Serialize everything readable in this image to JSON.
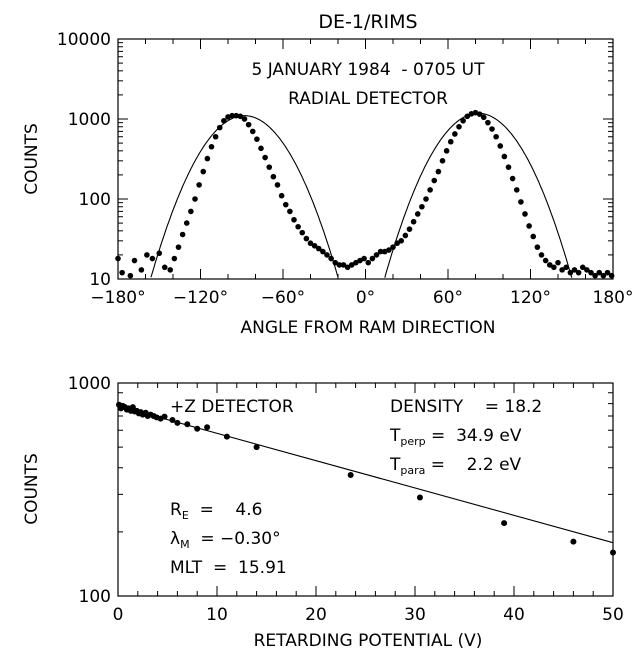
{
  "chart_data": [
    {
      "type": "scatter",
      "title": "DE-1/RIMS",
      "annotations": [
        "5 JANUARY 1984  - 0705 UT",
        "RADIAL DETECTOR"
      ],
      "xlabel": "ANGLE FROM RAM DIRECTION",
      "ylabel": "COUNTS",
      "xlim": [
        -180,
        180
      ],
      "ylim": [
        10,
        10000
      ],
      "yscale": "log",
      "x_ticks": [
        -180,
        -120,
        -60,
        0,
        60,
        120,
        180
      ],
      "x_tick_labels": [
        "−180°",
        "−120°",
        "−60°",
        "0°",
        "60°",
        "120°",
        "180°"
      ],
      "y_ticks": [
        10,
        100,
        1000,
        10000
      ],
      "y_tick_labels": [
        "10",
        "100",
        "1000",
        "10000"
      ],
      "series": [
        {
          "kind": "points",
          "x": [
            -180,
            -177,
            -171,
            -168,
            -163,
            -159,
            -155,
            -150,
            -146,
            -142,
            -139,
            -136,
            -133,
            -130,
            -127,
            -124,
            -121,
            -118,
            -115,
            -112,
            -109,
            -106,
            -103,
            -100,
            -97,
            -94,
            -91,
            -88,
            -85,
            -82,
            -79,
            -76,
            -73,
            -70,
            -67,
            -64,
            -61,
            -58,
            -55,
            -52,
            -49,
            -46,
            -43,
            -40,
            -37,
            -34,
            -31,
            -28,
            -25,
            -22,
            -19,
            -16,
            -13,
            -10,
            -7,
            -4,
            -1,
            2,
            5,
            8,
            11,
            14,
            17,
            20,
            23,
            26,
            29,
            32,
            35,
            38,
            41,
            44,
            47,
            50,
            53,
            56,
            59,
            62,
            65,
            68,
            71,
            74,
            77,
            80,
            83,
            86,
            89,
            92,
            95,
            98,
            101,
            104,
            107,
            110,
            113,
            116,
            119,
            122,
            125,
            128,
            131,
            134,
            137,
            140,
            143,
            146,
            149,
            152,
            155,
            158,
            161,
            164,
            167,
            170,
            173,
            176,
            179
          ],
          "y": [
            18,
            12,
            11,
            17,
            13,
            20,
            18,
            21,
            14,
            13,
            18,
            25,
            36,
            50,
            70,
            100,
            150,
            220,
            320,
            450,
            600,
            780,
            950,
            1060,
            1100,
            1100,
            1080,
            1000,
            850,
            700,
            560,
            430,
            330,
            250,
            190,
            150,
            110,
            85,
            70,
            55,
            45,
            38,
            32,
            28,
            26,
            24,
            22,
            20,
            18,
            16,
            15,
            15,
            14,
            15,
            16,
            17,
            18,
            16,
            18,
            20,
            22,
            22,
            23,
            25,
            28,
            30,
            35,
            42,
            52,
            65,
            80,
            100,
            130,
            170,
            220,
            300,
            400,
            520,
            650,
            800,
            950,
            1080,
            1160,
            1200,
            1150,
            1050,
            900,
            750,
            600,
            460,
            340,
            250,
            180,
            130,
            92,
            65,
            46,
            34,
            25,
            20,
            17,
            15,
            14,
            16,
            13,
            14,
            12,
            13,
            12,
            14,
            13,
            12,
            11,
            12,
            11,
            12,
            11
          ]
        },
        {
          "kind": "fit",
          "peaks": [
            {
              "center": -88,
              "peak": 1100,
              "sigma": 22.3
            },
            {
              "center": 82,
              "peak": 1180,
              "sigma": 22.1
            }
          ]
        }
      ]
    },
    {
      "type": "scatter",
      "annotations": [
        "+Z DETECTOR",
        "DENSITY    = 18.2",
        "T_perp =  34.9 eV",
        "T_para =    2.2 eV",
        "R_E  =    4.6",
        "λ_M  = −0.30°",
        "MLT  =  15.91"
      ],
      "xlabel": "RETARDING POTENTIAL  (V)",
      "ylabel": "COUNTS",
      "xlim": [
        0,
        50
      ],
      "ylim": [
        100,
        1000
      ],
      "yscale": "log",
      "x_ticks": [
        0,
        10,
        20,
        30,
        40,
        50
      ],
      "y_ticks": [
        100,
        1000
      ],
      "y_tick_labels": [
        "100",
        "1000"
      ],
      "series": [
        {
          "kind": "points",
          "x": [
            0.1,
            0.3,
            0.5,
            0.7,
            0.9,
            1.1,
            1.3,
            1.5,
            1.7,
            1.9,
            2.1,
            2.3,
            2.5,
            2.8,
            3.0,
            3.3,
            3.6,
            3.9,
            4.3,
            4.7,
            5.5,
            6.0,
            7.0,
            8.0,
            9.0,
            11.0,
            14.0,
            23.5,
            30.5,
            39.0,
            46.0,
            50.0
          ],
          "y": [
            790,
            760,
            780,
            770,
            750,
            760,
            740,
            770,
            735,
            740,
            720,
            730,
            710,
            725,
            700,
            710,
            700,
            690,
            680,
            695,
            670,
            650,
            640,
            610,
            620,
            560,
            500,
            370,
            290,
            220,
            180,
            160
          ]
        },
        {
          "kind": "fit",
          "x": [
            0,
            50
          ],
          "y": [
            780,
            178
          ]
        }
      ]
    }
  ]
}
